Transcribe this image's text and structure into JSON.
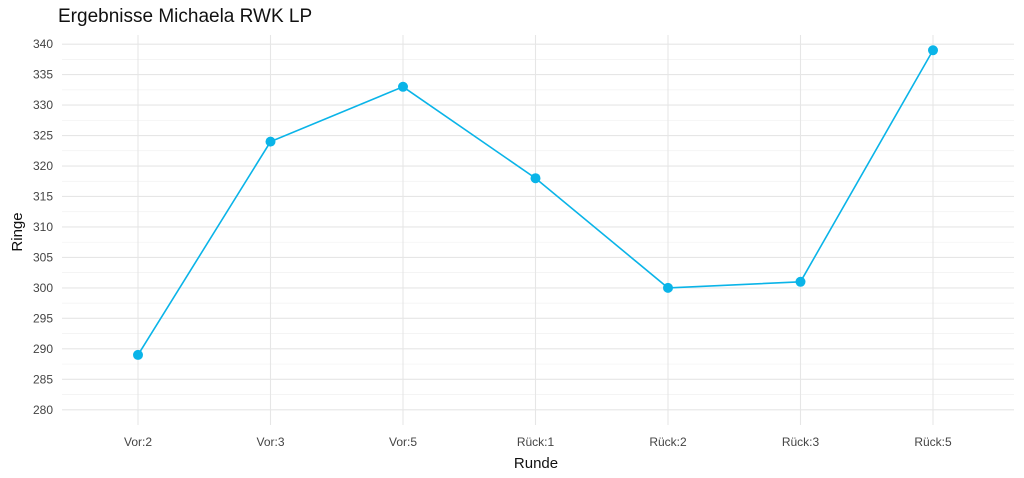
{
  "chart_data": {
    "type": "line",
    "title": "Ergebnisse Michaela RWK LP",
    "xlabel": "Runde",
    "ylabel": "Ringe",
    "categories": [
      "Vor:2",
      "Vor:3",
      "Vor:5",
      "Rück:1",
      "Rück:2",
      "Rück:3",
      "Rück:5"
    ],
    "series": [
      {
        "values": [
          289,
          324,
          333,
          318,
          300,
          301,
          339
        ],
        "color": "#0AB4E8"
      }
    ],
    "ylim": [
      277.5,
      341.5
    ],
    "yticks": [
      280,
      285,
      290,
      295,
      300,
      305,
      310,
      315,
      320,
      325,
      330,
      335,
      340
    ],
    "grid": true,
    "legend": "none"
  }
}
